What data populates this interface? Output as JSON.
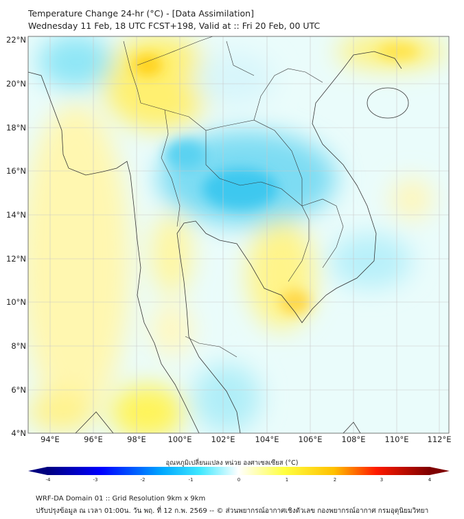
{
  "header": {
    "title": "Temperature Change 24-hr (°C) - [Data Assimilation]",
    "subtitle": "Wednesday 11 Feb, 18 UTC FCST+198, Valid at :: Fri 20 Feb, 00 UTC"
  },
  "map": {
    "lat_labels": [
      "22°N",
      "20°N",
      "18°N",
      "16°N",
      "14°N",
      "12°N",
      "10°N",
      "8°N",
      "6°N",
      "4°N"
    ],
    "lon_labels": [
      "94°E",
      "96°E",
      "98°E",
      "100°E",
      "102°E",
      "104°E",
      "106°E",
      "108°E",
      "110°E",
      "112°E"
    ]
  },
  "colorbar": {
    "title": "อุณหภูมิเปลี่ยนแปลง หน่วย องศาเซลเซียส (°C)",
    "ticks": [
      "-4",
      "-3",
      "-2",
      "-1",
      "0",
      "1",
      "2",
      "3",
      "4"
    ],
    "range": [
      -4,
      4
    ],
    "colors": [
      "#00007f",
      "#0000ff",
      "#00b0ff",
      "#40e8ff",
      "#ffffff",
      "#ffff40",
      "#ffc000",
      "#ff2000",
      "#7f0000"
    ]
  },
  "footer": {
    "line1": "WRF-DA Domain 01 :: Grid Resolution 9km x 9km",
    "line2": "ปรับปรุงข้อมูล ณ เวลา 01:00น. วัน พฤ. ที่ 12 ก.พ. 2569 -- © ส่วนพยากรณ์อากาศเชิงตัวเลข กองพยากรณ์อากาศ กรมอุตุนิยมวิทยา"
  }
}
